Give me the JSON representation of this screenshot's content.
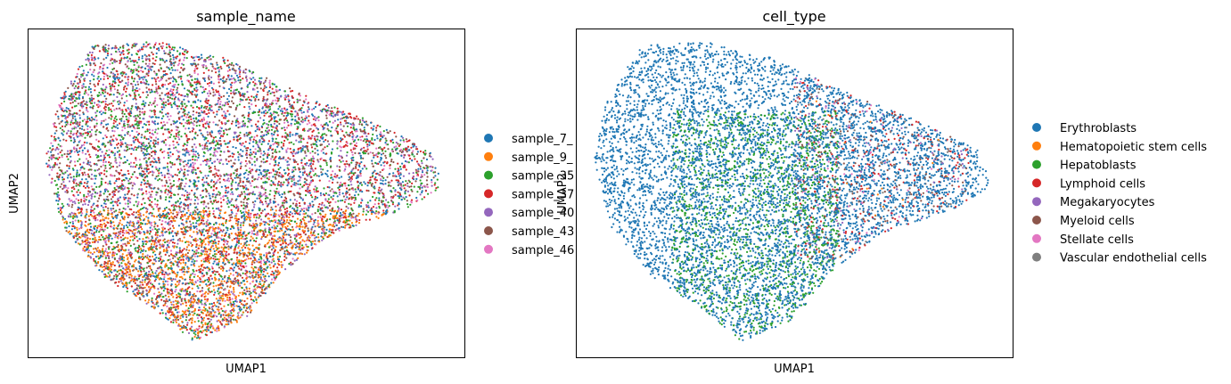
{
  "chart_data": [
    {
      "type": "scatter",
      "title": "sample_name",
      "xlabel": "UMAP1",
      "ylabel": "UMAP2",
      "grid": false,
      "ticks": false,
      "legend_placement": "right",
      "series": [
        {
          "name": "sample_7_",
          "color": "#1f77b4",
          "count": 1600
        },
        {
          "name": "sample_9_",
          "color": "#ff7f0e",
          "count": 1200
        },
        {
          "name": "sample_35",
          "color": "#2ca02c",
          "count": 1400
        },
        {
          "name": "sample_37",
          "color": "#d62728",
          "count": 1700
        },
        {
          "name": "sample_40",
          "color": "#9467bd",
          "count": 900
        },
        {
          "name": "sample_43",
          "color": "#8c564b",
          "count": 1300
        },
        {
          "name": "sample_46",
          "color": "#e377c2",
          "count": 900
        }
      ]
    },
    {
      "type": "scatter",
      "title": "cell_type",
      "xlabel": "UMAP1",
      "ylabel": "UMAP2",
      "grid": false,
      "ticks": false,
      "legend_placement": "right",
      "series": [
        {
          "name": "Erythroblasts",
          "color": "#1f77b4",
          "count": 6200
        },
        {
          "name": "Hematopoietic stem cells",
          "color": "#ff7f0e",
          "count": 20
        },
        {
          "name": "Hepatoblasts",
          "color": "#2ca02c",
          "count": 1400
        },
        {
          "name": "Lymphoid cells",
          "color": "#d62728",
          "count": 250
        },
        {
          "name": "Megakaryocytes",
          "color": "#9467bd",
          "count": 90
        },
        {
          "name": "Myeloid cells",
          "color": "#8c564b",
          "count": 200
        },
        {
          "name": "Stellate cells",
          "color": "#e377c2",
          "count": 70
        },
        {
          "name": "Vascular endothelial cells",
          "color": "#7f7f7f",
          "count": 60
        }
      ]
    }
  ]
}
